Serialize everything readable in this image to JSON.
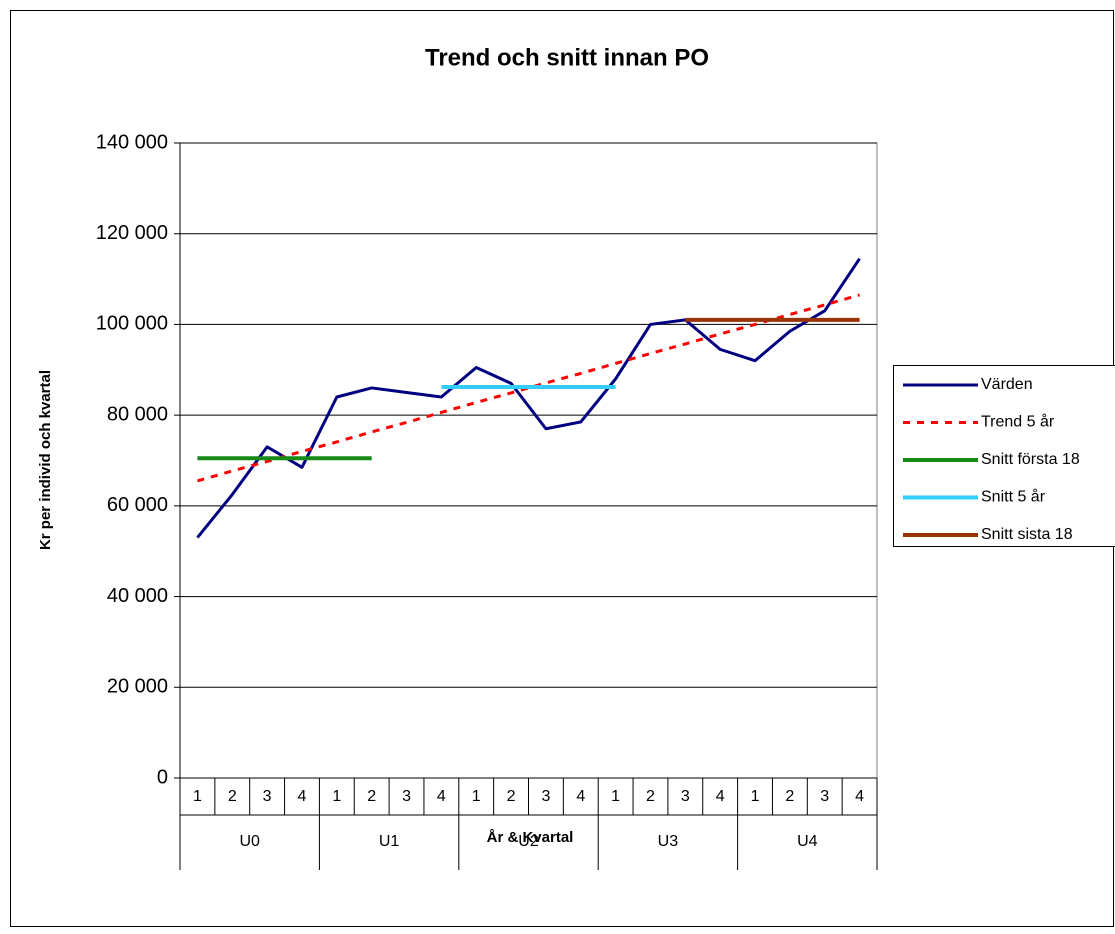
{
  "chart_data": {
    "type": "line",
    "title": "Trend och snitt innan PO",
    "x_label": "År & Kvartal",
    "y_label": "Kr per individ och kvartal",
    "categories": [
      "1",
      "2",
      "3",
      "4",
      "1",
      "2",
      "3",
      "4",
      "1",
      "2",
      "3",
      "4",
      "1",
      "2",
      "3",
      "4",
      "1",
      "2",
      "3",
      "4"
    ],
    "groups": [
      "U0",
      "U1",
      "U2",
      "U3",
      "U4"
    ],
    "ylim": [
      0,
      140000
    ],
    "yticks": [
      {
        "value": 0,
        "label": "0"
      },
      {
        "value": 20000,
        "label": "20 000"
      },
      {
        "value": 40000,
        "label": "40 000"
      },
      {
        "value": 60000,
        "label": "60 000"
      },
      {
        "value": 80000,
        "label": "80 000"
      },
      {
        "value": 100000,
        "label": "100 000"
      },
      {
        "value": 120000,
        "label": "120 000"
      },
      {
        "value": 140000,
        "label": "140 000"
      }
    ],
    "grid": true,
    "legend": "right",
    "series": [
      {
        "name": "Värden",
        "color": "#000080",
        "values": [
          53000,
          62500,
          73000,
          68500,
          84000,
          86000,
          85000,
          84000,
          90500,
          87000,
          77000,
          78500,
          88000,
          100000,
          101000,
          94500,
          92000,
          98500,
          103000,
          114500
        ]
      },
      {
        "name": "Trend 5 år",
        "color": "#ff0000",
        "dashed": true,
        "values": [
          65500,
          67700,
          69800,
          72000,
          74100,
          76300,
          78400,
          80600,
          82800,
          84900,
          87100,
          89200,
          91400,
          93600,
          95700,
          97900,
          100000,
          102200,
          104300,
          106500
        ]
      },
      {
        "name": "Snitt första 18",
        "color": "#158a15",
        "values": [
          70500,
          70500,
          70500,
          70500,
          70500,
          70500,
          null,
          null,
          null,
          null,
          null,
          null,
          null,
          null,
          null,
          null,
          null,
          null,
          null,
          null
        ]
      },
      {
        "name": "Snitt 5 år",
        "color": "#33ccff",
        "values": [
          null,
          null,
          null,
          null,
          null,
          null,
          null,
          86200,
          86200,
          86200,
          86200,
          86200,
          86200,
          null,
          null,
          null,
          null,
          null,
          null,
          null
        ]
      },
      {
        "name": "Snitt sista 18",
        "color": "#993300",
        "values": [
          null,
          null,
          null,
          null,
          null,
          null,
          null,
          null,
          null,
          null,
          null,
          null,
          null,
          null,
          101000,
          101000,
          101000,
          101000,
          101000,
          101000
        ]
      }
    ]
  }
}
